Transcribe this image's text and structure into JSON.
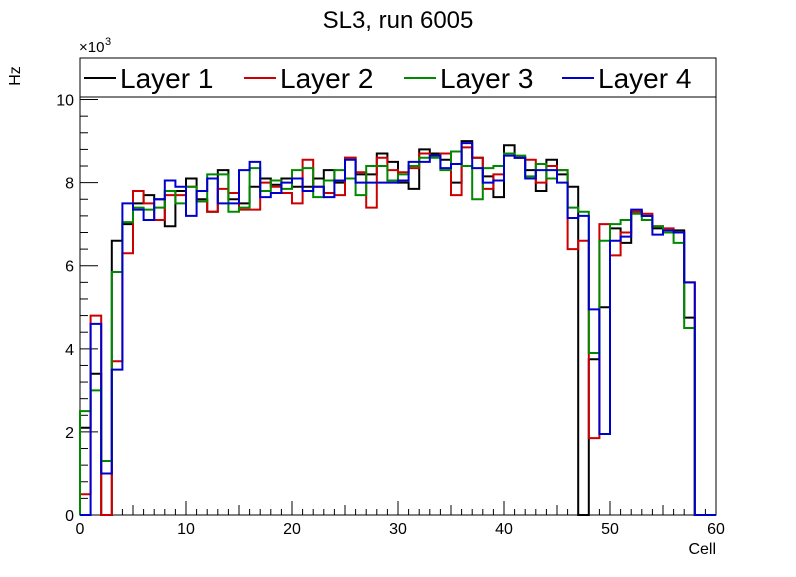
{
  "chart_data": {
    "type": "line",
    "subtype": "step-histogram",
    "title": "SL3, run 6005",
    "xlabel": "Cell",
    "ylabel": "Hz",
    "y_exponent_label": "×10",
    "y_exponent_power": "3",
    "xlim": [
      0,
      60
    ],
    "ylim": [
      0,
      11
    ],
    "x_ticks": [
      0,
      10,
      20,
      30,
      40,
      50,
      60
    ],
    "x_tick_labels": [
      "0",
      "10",
      "20",
      "30",
      "40",
      "50",
      "60"
    ],
    "y_ticks": [
      0,
      2,
      4,
      6,
      8,
      10
    ],
    "y_tick_labels": [
      "0",
      "2",
      "4",
      "6",
      "8",
      "10"
    ],
    "legend_position": "top",
    "grid": false,
    "bin_edges": [
      0,
      1,
      2,
      3,
      4,
      5,
      6,
      7,
      8,
      9,
      10,
      11,
      12,
      13,
      14,
      15,
      16,
      17,
      18,
      19,
      20,
      21,
      22,
      23,
      24,
      25,
      26,
      27,
      28,
      29,
      30,
      31,
      32,
      33,
      34,
      35,
      36,
      37,
      38,
      39,
      40,
      41,
      42,
      43,
      44,
      45,
      46,
      47,
      48,
      49,
      50,
      51,
      52,
      53,
      54,
      55,
      56,
      57,
      58,
      59,
      60
    ],
    "series": [
      {
        "name": "Layer 1",
        "color": "#000000",
        "values": [
          2.1,
          3.4,
          0.0,
          6.6,
          7.0,
          7.5,
          7.7,
          7.6,
          6.95,
          7.8,
          8.1,
          7.6,
          7.3,
          8.3,
          7.6,
          7.5,
          7.9,
          8.1,
          7.95,
          8.1,
          7.9,
          7.9,
          8.1,
          8.3,
          8.0,
          8.6,
          8.2,
          8.2,
          8.7,
          8.5,
          8.0,
          7.85,
          8.8,
          8.7,
          8.55,
          8.0,
          9.0,
          8.6,
          8.15,
          7.65,
          8.9,
          8.6,
          8.3,
          7.8,
          8.55,
          8.2,
          7.9,
          0.0,
          3.75,
          5.0,
          6.9,
          6.55,
          7.3,
          7.2,
          6.9,
          6.8,
          6.85,
          4.75,
          0.0,
          0.0
        ]
      },
      {
        "name": "Layer 2",
        "color": "#cc0000",
        "values": [
          0.5,
          4.8,
          0.0,
          3.7,
          6.3,
          7.8,
          7.5,
          7.1,
          7.7,
          7.7,
          7.9,
          7.55,
          7.3,
          7.85,
          7.75,
          7.35,
          7.35,
          8.0,
          7.9,
          7.75,
          7.5,
          8.55,
          7.9,
          7.75,
          7.7,
          8.6,
          8.25,
          7.4,
          8.6,
          8.3,
          8.25,
          8.35,
          8.7,
          8.65,
          8.7,
          7.7,
          8.85,
          8.6,
          7.85,
          8.2,
          8.7,
          8.6,
          8.55,
          8.0,
          8.4,
          8.3,
          6.4,
          6.6,
          1.85,
          7.0,
          6.25,
          6.8,
          7.3,
          7.25,
          6.95,
          6.9,
          6.8,
          5.6,
          0.0,
          0.0
        ]
      },
      {
        "name": "Layer 3",
        "color": "#008800",
        "values": [
          2.5,
          3.0,
          1.3,
          5.85,
          7.05,
          7.4,
          7.35,
          7.4,
          7.8,
          7.5,
          7.9,
          7.55,
          8.2,
          8.2,
          7.3,
          7.4,
          8.35,
          7.8,
          8.05,
          7.85,
          8.3,
          8.35,
          7.65,
          8.05,
          8.3,
          8.1,
          7.7,
          8.4,
          8.4,
          8.05,
          8.2,
          8.4,
          8.6,
          8.6,
          8.3,
          8.75,
          8.4,
          7.6,
          8.35,
          8.4,
          8.7,
          8.65,
          8.15,
          8.45,
          8.1,
          8.3,
          7.4,
          7.3,
          3.9,
          6.6,
          7.0,
          7.1,
          7.25,
          7.1,
          6.95,
          6.8,
          6.55,
          4.5,
          0.0,
          0.0
        ]
      },
      {
        "name": "Layer 4",
        "color": "#0000cc",
        "values": [
          0.0,
          4.6,
          1.0,
          3.5,
          7.5,
          7.35,
          7.1,
          7.6,
          8.05,
          7.9,
          7.2,
          7.8,
          8.1,
          7.5,
          7.5,
          8.3,
          8.5,
          7.65,
          7.75,
          8.0,
          8.1,
          7.8,
          7.9,
          7.65,
          8.05,
          8.55,
          8.0,
          8.0,
          8.0,
          8.0,
          8.05,
          8.5,
          8.5,
          8.65,
          8.35,
          8.45,
          8.95,
          8.35,
          8.0,
          8.05,
          8.65,
          8.6,
          8.1,
          8.3,
          8.3,
          8.0,
          7.15,
          7.2,
          4.95,
          1.95,
          6.6,
          6.7,
          7.35,
          7.2,
          6.75,
          6.85,
          6.8,
          5.6,
          0.0,
          0.0
        ]
      }
    ]
  }
}
